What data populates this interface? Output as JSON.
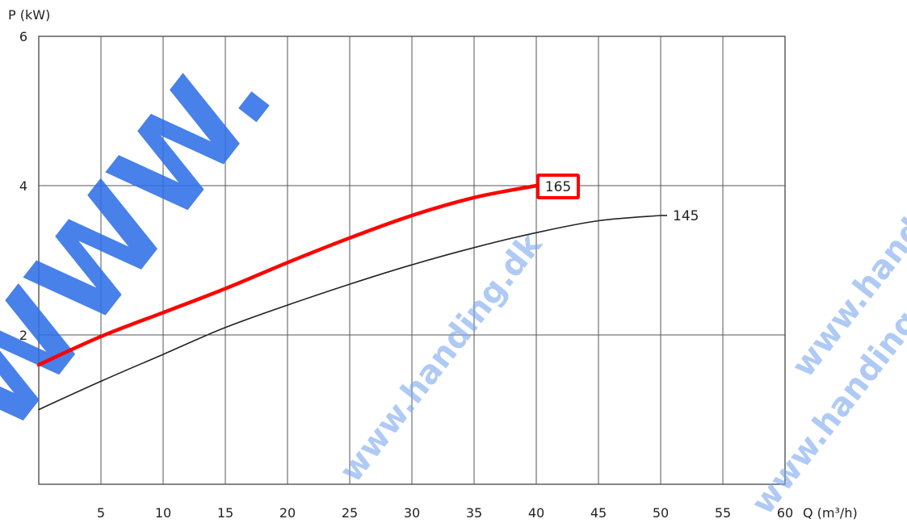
{
  "chart_data": {
    "type": "line",
    "xlabel": "Q (m³/h)",
    "ylabel": "P (kW)",
    "xlim": [
      0,
      60
    ],
    "ylim": [
      0,
      6
    ],
    "x_ticks": [
      5,
      10,
      15,
      20,
      25,
      30,
      35,
      40,
      45,
      50,
      55,
      60
    ],
    "y_ticks": [
      2,
      4,
      6
    ],
    "x_grid_step": 5,
    "y_grid_step": 2,
    "grid": true,
    "series": [
      {
        "name": "165",
        "color": "#ff0000",
        "highlighted": true,
        "points": [
          [
            0,
            1.6
          ],
          [
            5,
            1.98
          ],
          [
            10,
            2.3
          ],
          [
            15,
            2.62
          ],
          [
            20,
            2.97
          ],
          [
            25,
            3.3
          ],
          [
            30,
            3.6
          ],
          [
            35,
            3.84
          ],
          [
            40,
            4.0
          ]
        ]
      },
      {
        "name": "145",
        "color": "#222222",
        "highlighted": false,
        "points": [
          [
            0,
            1.0
          ],
          [
            5,
            1.38
          ],
          [
            10,
            1.74
          ],
          [
            15,
            2.1
          ],
          [
            20,
            2.4
          ],
          [
            25,
            2.68
          ],
          [
            30,
            2.94
          ],
          [
            35,
            3.17
          ],
          [
            40,
            3.37
          ],
          [
            45,
            3.53
          ],
          [
            50,
            3.6
          ]
        ]
      }
    ],
    "watermark": [
      "WWW.",
      "www.handing.dk",
      "www.handing.dk",
      "www.handing.dk"
    ]
  }
}
